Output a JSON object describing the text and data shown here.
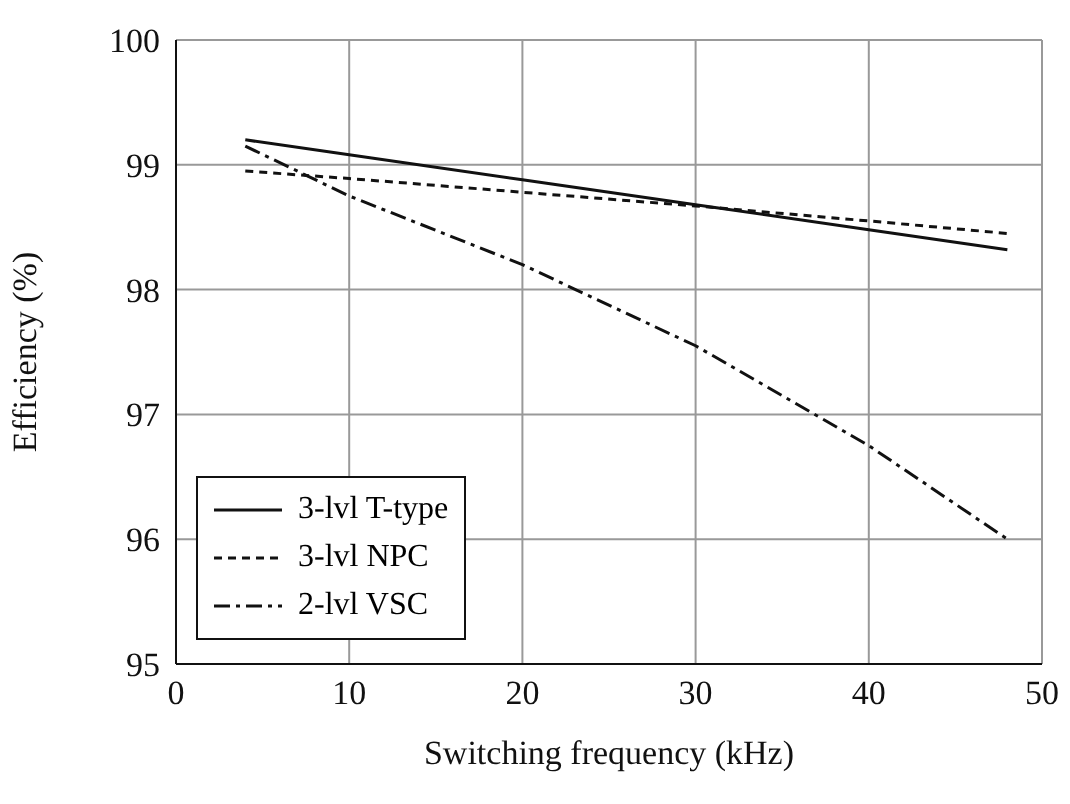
{
  "chart_data": {
    "type": "line",
    "xlabel": "Switching frequency (kHz)",
    "ylabel": "Efficiency (%)",
    "x": [
      4,
      10,
      20,
      30,
      40,
      48
    ],
    "series": [
      {
        "name": "3-lvl T-type",
        "color": "#111111",
        "line_style": "solid",
        "values": [
          99.2,
          99.08,
          98.88,
          98.68,
          98.48,
          98.32
        ]
      },
      {
        "name": "3-lvl NPC",
        "color": "#111111",
        "line_style": "dashed",
        "values": [
          98.95,
          98.89,
          98.78,
          98.67,
          98.55,
          98.45
        ]
      },
      {
        "name": "2-lvl VSC",
        "color": "#111111",
        "line_style": "dashdot",
        "values": [
          99.15,
          98.75,
          98.2,
          97.55,
          96.75,
          96.0
        ]
      }
    ],
    "xlim": [
      0,
      50
    ],
    "xticks": [
      0,
      10,
      20,
      30,
      40,
      50
    ],
    "ylim": [
      95,
      100
    ],
    "yticks": [
      95,
      96,
      97,
      98,
      99,
      100
    ],
    "grid": true,
    "legend": "bottom left",
    "marker": "none"
  }
}
